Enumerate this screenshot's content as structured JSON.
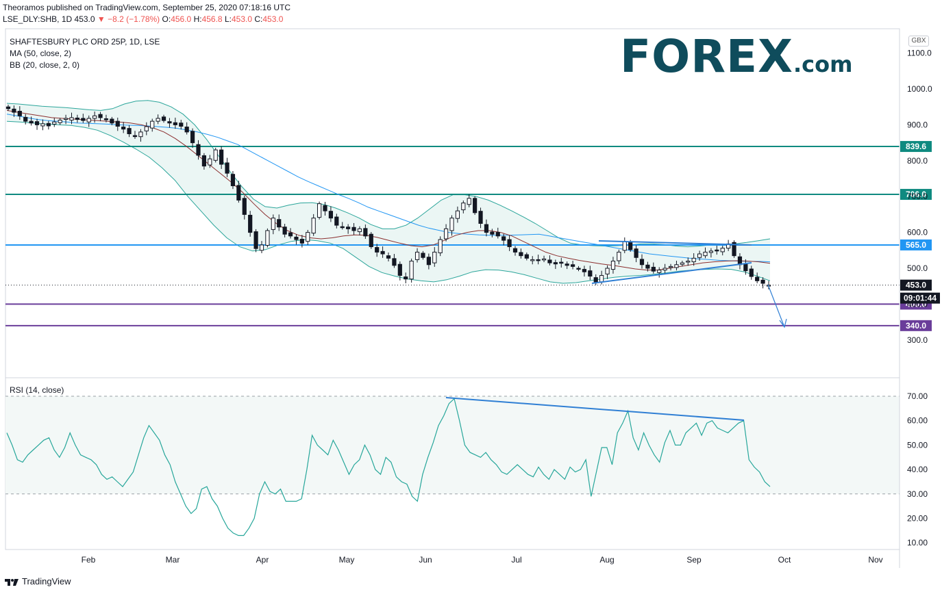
{
  "header": {
    "publish_line": "Theoramos published on TradingView.com, September 25, 2020 07:18:16 UTC",
    "symbol": "LSE_DLY:SHB, 1D",
    "last": "453.0",
    "change": "−8.2 (−1.78%)",
    "o_label": "O:",
    "o_value": "456.0",
    "h_label": "H:",
    "h_value": "456.8",
    "l_label": "L:",
    "l_value": "453.0",
    "c_label": "C:",
    "c_value": "453.0"
  },
  "indicators": {
    "title": "SHAFTESBURY PLC ORD 25P, 1D, LSE",
    "ma": "MA (50, close, 2)",
    "bb": "BB (20, close, 2, 0)",
    "rsi": "RSI (14, close)"
  },
  "currency": "GBX",
  "logo": {
    "main": "FOREX",
    "suffix": ".com"
  },
  "footer": {
    "brand": "TradingView"
  },
  "countdown": "09:01:44",
  "colors": {
    "teal": "#0f8a80",
    "blue": "#2196f3",
    "purple": "#6a3d9a",
    "black": "#131722",
    "ma": "#8b2e2e",
    "bb": "#2aa59a",
    "band_fill": "#e6f4f1",
    "rsi": "#26a69a",
    "trend": "#2f7fd4",
    "logo": "#0f4c5c",
    "logo_o_accent": "#2aa59a",
    "tv_mark": "#131722",
    "red": "#ef5350"
  },
  "chart_data": [
    {
      "type": "candlestick",
      "title": "SHAFTESBURY PLC ORD 25P, 1D, LSE",
      "x_ticks": [
        "Feb",
        "Mar",
        "Apr",
        "May",
        "Jun",
        "Jul",
        "Aug",
        "Sep",
        "Oct",
        "Nov"
      ],
      "y_ticks": [
        300.0,
        400.0,
        500.0,
        600.0,
        700.0,
        800.0,
        900.0,
        1000.0,
        1100.0
      ],
      "ylim": [
        260,
        1140
      ],
      "close_series": [
        945,
        935,
        925,
        910,
        905,
        900,
        903,
        897,
        908,
        913,
        918,
        920,
        915,
        912,
        918,
        925,
        920,
        915,
        905,
        896,
        888,
        875,
        868,
        880,
        895,
        910,
        918,
        912,
        905,
        900,
        896,
        880,
        850,
        815,
        785,
        805,
        830,
        790,
        765,
        730,
        690,
        650,
        600,
        555,
        565,
        605,
        640,
        615,
        595,
        590,
        580,
        570,
        600,
        640,
        680,
        660,
        640,
        620,
        615,
        610,
        605,
        610,
        590,
        560,
        545,
        540,
        528,
        508,
        480,
        470,
        520,
        545,
        530,
        510,
        545,
        580,
        610,
        640,
        660,
        682,
        695,
        655,
        625,
        600,
        595,
        590,
        578,
        560,
        545,
        535,
        528,
        524,
        522,
        526,
        515,
        512,
        514,
        508,
        505,
        498,
        490,
        478,
        462,
        480,
        500,
        520,
        545,
        575,
        552,
        530,
        510,
        500,
        492,
        495,
        500,
        505,
        510,
        515,
        520,
        528,
        540,
        545,
        548,
        550,
        556,
        568,
        535,
        510,
        493,
        477,
        465,
        458,
        453
      ],
      "ma50": [
        930,
        925,
        920,
        915,
        912,
        910,
        908,
        905,
        904,
        903,
        902,
        900,
        899,
        898,
        897,
        895,
        893,
        890,
        885,
        880,
        873,
        865,
        855,
        845,
        830,
        815,
        800,
        785,
        770,
        755,
        742,
        730,
        718,
        706,
        695,
        683,
        670,
        660,
        650,
        640,
        630,
        620,
        612,
        606,
        600,
        597,
        595,
        593,
        592,
        592,
        592,
        593,
        594,
        595,
        590,
        585,
        580,
        575,
        570,
        565,
        560,
        555,
        550,
        545,
        540,
        537,
        534,
        531,
        528,
        526,
        524,
        522,
        521,
        520,
        519,
        519,
        518
      ],
      "bb_mid": [
        940,
        935,
        930,
        925,
        920,
        918,
        916,
        914,
        912,
        910,
        908,
        905,
        900,
        892,
        880,
        862,
        840,
        815,
        790,
        765,
        740,
        712,
        680,
        650,
        625,
        605,
        592,
        585,
        582,
        585,
        590,
        593,
        592,
        586,
        578,
        570,
        563,
        560,
        565,
        578,
        592,
        600,
        605,
        605,
        600,
        590,
        575,
        560,
        545,
        535,
        528,
        522,
        517,
        512,
        508,
        503,
        498,
        495,
        495,
        500,
        505,
        510,
        515,
        518,
        520,
        521,
        520,
        518,
        514
      ],
      "bb_upper": [
        960,
        958,
        955,
        952,
        950,
        948,
        945,
        942,
        940,
        945,
        958,
        966,
        968,
        963,
        950,
        930,
        900,
        860,
        815,
        770,
        728,
        693,
        672,
        668,
        676,
        682,
        683,
        678,
        668,
        655,
        640,
        622,
        610,
        610,
        620,
        640,
        665,
        690,
        705,
        705,
        700,
        690,
        676,
        660,
        643,
        625,
        605,
        585,
        570,
        565,
        563,
        562,
        563,
        565,
        568,
        568,
        566,
        562,
        560,
        562,
        565,
        566,
        568,
        572,
        577,
        582
      ],
      "bb_lower": [
        910,
        908,
        905,
        902,
        900,
        898,
        893,
        885,
        870,
        852,
        832,
        810,
        780,
        745,
        700,
        660,
        620,
        585,
        560,
        548,
        552,
        565,
        575,
        580,
        577,
        570,
        555,
        530,
        505,
        488,
        478,
        470,
        465,
        462,
        468,
        478,
        490,
        496,
        495,
        490,
        482,
        472,
        462,
        458,
        460,
        465,
        470,
        475,
        478,
        480,
        483,
        487,
        492,
        495,
        497,
        498,
        497,
        490,
        478,
        465
      ],
      "levels": [
        {
          "value": 839.6,
          "label": "839.6",
          "color": "teal"
        },
        {
          "value": 706.0,
          "label": "706.0",
          "color": "teal"
        },
        {
          "value": 565.0,
          "label": "565.0",
          "color": "blue"
        },
        {
          "value": 400.0,
          "label": "400.0",
          "color": "purple"
        },
        {
          "value": 340.0,
          "label": "340.0",
          "color": "purple"
        }
      ],
      "last_price": {
        "value": 453.0,
        "label": "453.0"
      },
      "annotations": [
        {
          "type": "trendline",
          "from": [
            "2020-07-27",
            573
          ],
          "to": [
            "2020-09-18",
            562
          ]
        },
        {
          "type": "trendline",
          "from": [
            "2020-07-27",
            458
          ],
          "to": [
            "2020-09-18",
            512
          ]
        },
        {
          "type": "arrow",
          "from": [
            "2020-09-24",
            455
          ],
          "to": [
            "2020-09-28",
            342
          ]
        }
      ]
    },
    {
      "type": "line",
      "title": "RSI (14, close)",
      "y_ticks": [
        10.0,
        20.0,
        30.0,
        40.0,
        50.0,
        60.0,
        70.0
      ],
      "ylim": [
        7,
        75
      ],
      "band": [
        30,
        70
      ],
      "values": [
        55,
        50,
        44,
        43,
        46,
        48,
        50,
        52,
        53,
        48,
        45,
        49,
        55,
        50,
        46,
        45,
        44,
        42,
        38,
        36,
        37,
        35,
        33,
        36,
        39,
        46,
        53,
        58,
        55,
        52,
        46,
        42,
        35,
        30,
        25,
        22,
        24,
        32,
        33,
        28,
        25,
        20,
        16,
        14,
        13,
        13,
        16,
        20,
        30,
        35,
        31,
        30,
        32,
        27,
        27,
        27,
        28,
        40,
        54,
        50,
        48,
        46,
        52,
        48,
        43,
        38,
        42,
        44,
        50,
        46,
        40,
        38,
        45,
        43,
        37,
        35,
        34,
        29,
        27,
        38,
        45,
        51,
        58,
        62,
        67,
        69,
        60,
        50,
        47,
        46,
        45,
        47,
        44,
        42,
        39,
        38,
        40,
        42,
        40,
        38,
        37,
        41,
        38,
        36,
        40,
        38,
        36,
        41,
        39,
        40,
        44,
        29,
        39,
        49,
        49,
        42,
        55,
        59,
        64,
        53,
        48,
        55,
        50,
        46,
        43,
        51,
        56,
        50,
        50,
        55,
        57,
        59,
        54,
        59,
        60,
        57,
        56,
        55,
        57,
        59,
        60,
        44,
        41,
        39,
        35,
        33
      ]
    }
  ]
}
